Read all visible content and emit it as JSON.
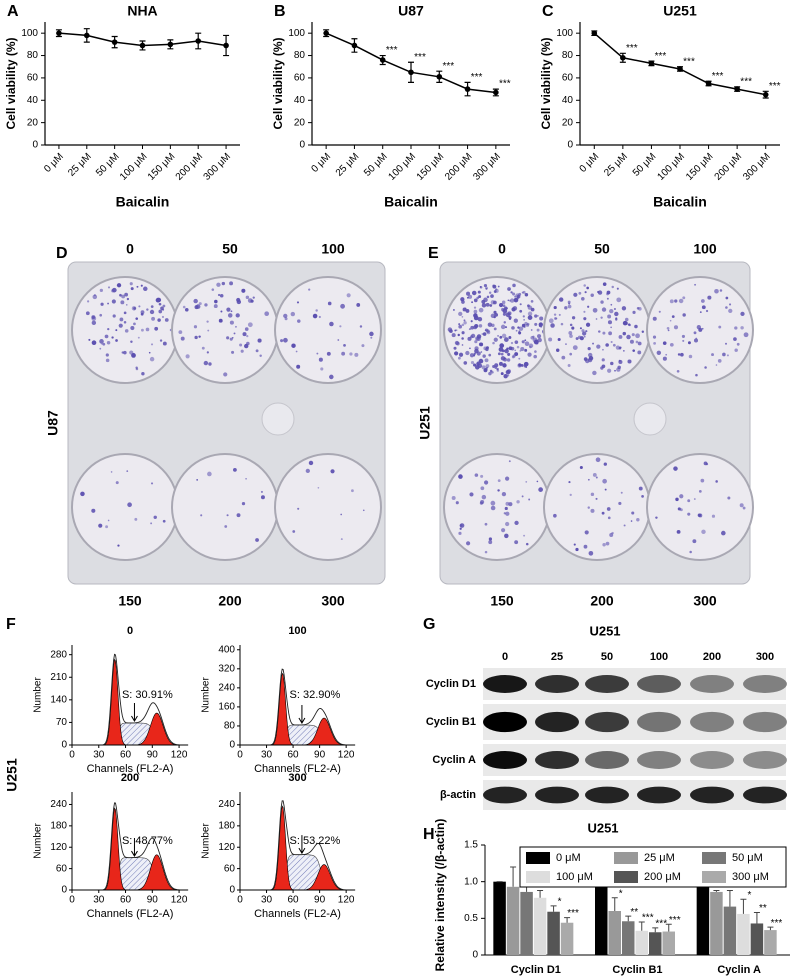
{
  "chart_data": [
    {
      "type": "line",
      "panel_label": "A",
      "title": "NHA",
      "ylabel": "Cell viability (%)",
      "xlabel": "Baicalin",
      "categories": [
        "0 μM",
        "25 μM",
        "50 μM",
        "100 μM",
        "150 μM",
        "200 μM",
        "300 μM"
      ],
      "values": [
        100,
        98,
        92,
        89,
        90,
        93,
        89
      ],
      "errors": [
        3,
        6,
        5,
        4,
        4,
        7,
        9
      ],
      "annotations": [
        null,
        null,
        null,
        null,
        null,
        null,
        null
      ],
      "ylim": [
        0,
        110
      ],
      "yticks": [
        0,
        20,
        40,
        60,
        80,
        100
      ],
      "color": "#000000"
    },
    {
      "type": "line",
      "panel_label": "B",
      "title": "U87",
      "ylabel": "Cell viability (%)",
      "xlabel": "Baicalin",
      "categories": [
        "0 μM",
        "25 μM",
        "50 μM",
        "100 μM",
        "150 μM",
        "200 μM",
        "300 μM"
      ],
      "values": [
        100,
        89,
        76,
        65,
        61,
        50,
        47
      ],
      "errors": [
        3,
        6,
        4,
        9,
        5,
        6,
        3
      ],
      "annotations": [
        null,
        null,
        "***",
        "***",
        "***",
        "***",
        "***"
      ],
      "ylim": [
        0,
        110
      ],
      "yticks": [
        0,
        20,
        40,
        60,
        80,
        100
      ],
      "color": "#000000"
    },
    {
      "type": "line",
      "panel_label": "C",
      "title": "U251",
      "ylabel": "Cell viability (%)",
      "xlabel": "Baicalin",
      "categories": [
        "0 μM",
        "25 μM",
        "50 μM",
        "100 μM",
        "150 μM",
        "200 μM",
        "300 μM"
      ],
      "values": [
        100,
        78,
        73,
        68,
        55,
        50,
        45
      ],
      "errors": [
        2,
        4,
        2,
        2,
        2,
        2,
        3
      ],
      "annotations": [
        null,
        "***",
        "***",
        "***",
        "***",
        "***",
        "***"
      ],
      "ylim": [
        0,
        110
      ],
      "yticks": [
        0,
        20,
        40,
        60,
        80,
        100
      ],
      "color": "#000000"
    },
    {
      "type": "flow",
      "title": "0",
      "ylabel": "Number",
      "xlabel": "Channels (FL2-A)",
      "annotation": "S: 30.91%",
      "xlim": [
        0,
        130
      ],
      "xticks": [
        0,
        30,
        60,
        90,
        120
      ],
      "ylim": [
        0,
        310
      ],
      "yticks": [
        0,
        70,
        140,
        210,
        280
      ]
    },
    {
      "type": "flow",
      "title": "100",
      "ylabel": "Number",
      "xlabel": "Channels (FL2-A)",
      "annotation": "S: 32.90%",
      "xlim": [
        0,
        130
      ],
      "xticks": [
        0,
        30,
        60,
        90,
        120
      ],
      "ylim": [
        0,
        420
      ],
      "yticks": [
        0,
        80,
        160,
        240,
        320,
        400
      ]
    },
    {
      "type": "flow",
      "title": "200",
      "ylabel": "Number",
      "xlabel": "Channels (FL2-A)",
      "annotation": "S: 48.77%",
      "xlim": [
        0,
        130
      ],
      "xticks": [
        0,
        30,
        60,
        90,
        120
      ],
      "ylim": [
        0,
        275
      ],
      "yticks": [
        0,
        60,
        120,
        180,
        240
      ]
    },
    {
      "type": "flow",
      "title": "300",
      "ylabel": "Number",
      "xlabel": "Channels (FL2-A)",
      "annotation": "S: 53.22%",
      "xlim": [
        0,
        130
      ],
      "xticks": [
        0,
        30,
        60,
        90,
        120
      ],
      "ylim": [
        0,
        275
      ],
      "yticks": [
        0,
        60,
        120,
        180,
        240
      ]
    },
    {
      "type": "bar",
      "panel_label": "H",
      "title": "U251",
      "ylabel": "Relative intensity (/β-actin)",
      "categories": [
        "Cyclin D1",
        "Cyclin B1",
        "Cyclin A"
      ],
      "series": [
        {
          "name": "0 μM",
          "color": "#000000",
          "values": [
            1.0,
            1.0,
            1.0
          ],
          "errors": [
            0,
            0,
            0
          ],
          "annotations": [
            null,
            null,
            null
          ]
        },
        {
          "name": "25 μM",
          "color": "#999999",
          "values": [
            0.93,
            0.6,
            0.86
          ],
          "errors": [
            0.27,
            0.18,
            0.02
          ],
          "annotations": [
            null,
            "*",
            null
          ]
        },
        {
          "name": "50 μM",
          "color": "#777777",
          "values": [
            0.86,
            0.46,
            0.66
          ],
          "errors": [
            0.1,
            0.07,
            0.22
          ],
          "annotations": [
            null,
            "**",
            null
          ]
        },
        {
          "name": "100 μM",
          "color": "#dddddd",
          "values": [
            0.78,
            0.33,
            0.56
          ],
          "errors": [
            0.1,
            0.12,
            0.2
          ],
          "annotations": [
            null,
            "***",
            "*"
          ]
        },
        {
          "name": "200 μM",
          "color": "#555555",
          "values": [
            0.59,
            0.31,
            0.43
          ],
          "errors": [
            0.08,
            0.06,
            0.15
          ],
          "annotations": [
            "*",
            "***",
            "**"
          ]
        },
        {
          "name": "300 μM",
          "color": "#aaaaaa",
          "values": [
            0.44,
            0.32,
            0.34
          ],
          "errors": [
            0.07,
            0.1,
            0.04
          ],
          "annotations": [
            "***",
            "***",
            "***"
          ]
        }
      ],
      "ylim": [
        0,
        1.5
      ],
      "yticks": [
        0,
        0.5,
        {
          "value": 1.0,
          "label": "1.0"
        },
        1.5
      ]
    }
  ],
  "flow_cytometry": {
    "panel_label": "F",
    "cell_line": "U251"
  },
  "colony_assays": [
    {
      "panel_label": "D",
      "cell_line": "U87",
      "doses_top": [
        "0",
        "50",
        "100"
      ],
      "doses_bottom": [
        "150",
        "200",
        "300"
      ]
    },
    {
      "panel_label": "E",
      "cell_line": "U251",
      "doses_top": [
        "0",
        "50",
        "100"
      ],
      "doses_bottom": [
        "150",
        "200",
        "300"
      ]
    }
  ],
  "western_blot": {
    "panel_label": "G",
    "title": "U251",
    "lanes": [
      "0",
      "25",
      "50",
      "100",
      "200",
      "300"
    ],
    "proteins": [
      "Cyclin D1",
      "Cyclin B1",
      "Cyclin A",
      "β-actin"
    ]
  }
}
